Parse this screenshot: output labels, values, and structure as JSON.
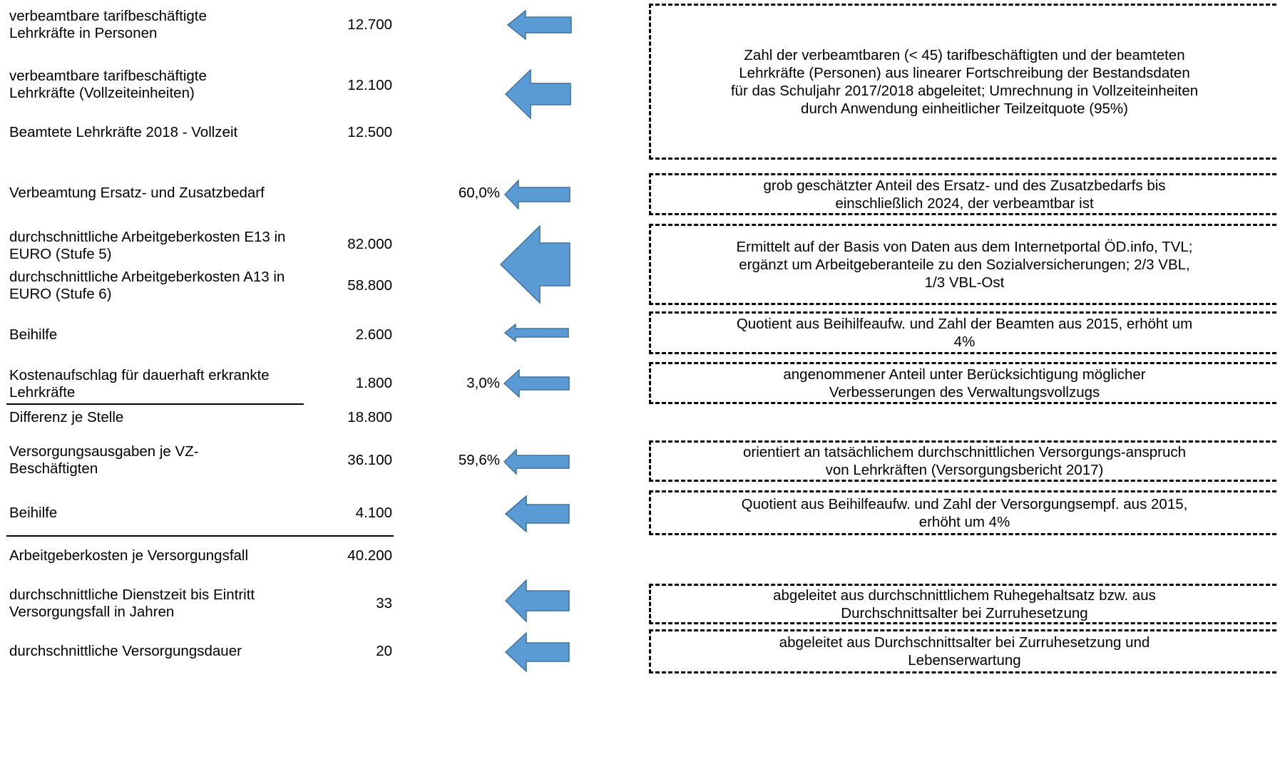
{
  "rows": [
    {
      "label": "verbeamtbare tarifbeschäftigte Lehrkräfte in Personen",
      "value": "12.700"
    },
    {
      "label": "verbeamtbare tarifbeschäftigte Lehrkräfte (Vollzeiteinheiten)",
      "value": "12.100"
    },
    {
      "label": "Beamtete Lehrkräfte 2018 - Vollzeit",
      "value": "12.500"
    },
    {
      "label": "Verbeamtung Ersatz- und Zusatzbedarf",
      "value": "",
      "percent": "60,0%"
    },
    {
      "label": "durchschnittliche Arbeitgeberkosten E13 in EURO (Stufe 5)",
      "value": "82.000"
    },
    {
      "label": "durchschnittliche Arbeitgeberkosten A13 in EURO (Stufe 6)",
      "value": "58.800"
    },
    {
      "label": "Beihilfe",
      "value": "2.600"
    },
    {
      "label": "Kostenaufschlag für dauerhaft erkrankte Lehrkräfte",
      "value": "1.800",
      "percent": "3,0%"
    },
    {
      "label": "Differenz je Stelle",
      "value": "18.800"
    },
    {
      "label": "Versorgungsausgaben je VZ-Beschäftigten",
      "value": "36.100",
      "percent": "59,6%"
    },
    {
      "label": "Beihilfe",
      "value": "4.100"
    },
    {
      "label": "Arbeitgeberkosten je Versorgungsfall",
      "value": "40.200"
    },
    {
      "label": "durchschnittliche Dienstzeit bis Eintritt Versorgungsfall in Jahren",
      "value": "33"
    },
    {
      "label": "durchschnittliche Versorgungsdauer",
      "value": "20"
    }
  ],
  "notes": [
    "Zahl der verbeamtbaren (< 45) tarifbeschäftigten und der beamteten Lehrkräfte (Personen) aus linearer Fortschreibung der Bestandsdaten für das Schuljahr 2017/2018 abgeleitet; Umrechnung in Vollzeiteinheiten durch Anwendung einheitlicher Teilzeitquote (95%)",
    "grob geschätzter Anteil des Ersatz- und des Zusatzbedarfs bis einschließlich 2024, der verbeamtbar ist",
    "Ermittelt auf der Basis von Daten aus dem Internetportal ÖD.info, TVL; ergänzt um Arbeitgeberanteile zu den Sozialversicherungen; 2/3 VBL, 1/3 VBL-Ost",
    "Quotient aus Beihilfeaufw. und Zahl der Beamten aus 2015, erhöht um 4%",
    "angenommener Anteil unter Berücksichtigung möglicher Verbesserungen des Verwaltungsvollzugs",
    "orientiert an tatsächlichem durchschnittlichen Versorgungs-anspruch von Lehrkräften (Versorgungsbericht 2017)",
    "Quotient aus Beihilfeaufw. und Zahl der Versorgungsempf. aus 2015, erhöht um 4%",
    "abgeleitet aus durchschnittlichem Ruhegehaltsatz bzw. aus Durchschnittsalter bei Zurruhesetzung",
    "abgeleitet aus Durchschnittsalter bei Zurruhesetzung und Lebenserwartung"
  ],
  "colors": {
    "arrow_fill": "#5b9bd5",
    "arrow_stroke": "#41719c"
  }
}
